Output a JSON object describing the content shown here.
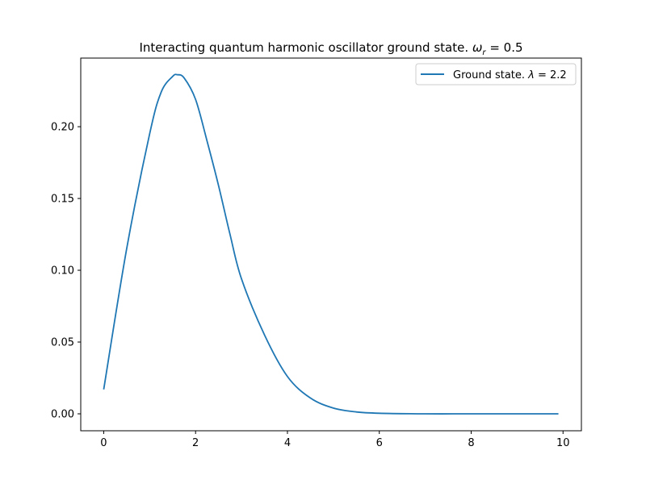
{
  "chart_data": {
    "type": "line",
    "title": "Interacting quantum harmonic oscillator ground state. ",
    "title_math_lhs": "ω",
    "title_math_sub": "r",
    "title_math_rhs": " = 0.5",
    "xlabel": "",
    "ylabel": "",
    "xlim": [
      -0.5,
      10.4
    ],
    "ylim": [
      -0.0118,
      0.2478
    ],
    "x_ticks": [
      0,
      2,
      4,
      6,
      8,
      10
    ],
    "y_ticks": [
      0.0,
      0.05,
      0.1,
      0.15,
      0.2
    ],
    "x_tick_labels": [
      "0",
      "2",
      "4",
      "6",
      "8",
      "10"
    ],
    "y_tick_labels": [
      "0.00",
      "0.05",
      "0.10",
      "0.15",
      "0.20"
    ],
    "grid": false,
    "legend_position": "top-right",
    "legend": {
      "text": "Ground state. ",
      "math_symbol": "λ",
      "math_rhs": " = 2.2"
    },
    "series": [
      {
        "color": "#1f77b4",
        "x": [
          0.0,
          0.5,
          1.0,
          1.25,
          1.5,
          1.6,
          1.75,
          2.0,
          2.25,
          2.5,
          2.75,
          3.0,
          3.5,
          4.0,
          4.5,
          5.0,
          5.5,
          6.0,
          7.0,
          8.0,
          9.0,
          9.9
        ],
        "y": [
          0.017,
          0.115,
          0.195,
          0.224,
          0.235,
          0.2362,
          0.234,
          0.219,
          0.19,
          0.159,
          0.125,
          0.094,
          0.055,
          0.026,
          0.011,
          0.004,
          0.0013,
          0.0004,
          0.0,
          0.0,
          0.0,
          0.0
        ]
      }
    ]
  }
}
